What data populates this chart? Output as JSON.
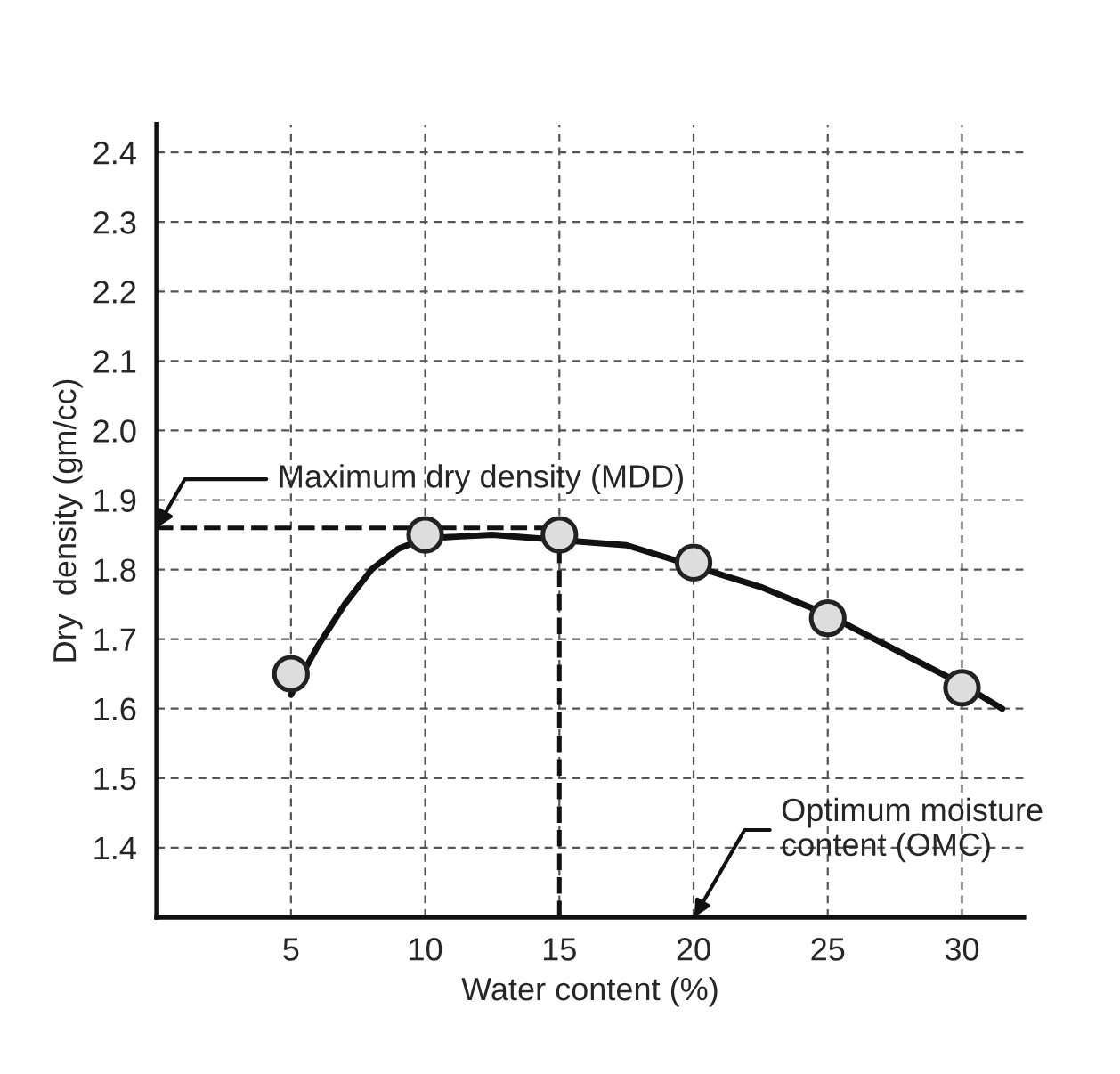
{
  "chart_data": {
    "type": "scatter",
    "xlabel": "Water content (%)",
    "ylabel": "Dry  density (gm/cc)",
    "x": [
      5,
      10,
      15,
      20,
      25,
      30
    ],
    "series": [
      {
        "color": "#222222",
        "marker": "circle",
        "values": [
          1.65,
          1.85,
          1.85,
          1.81,
          1.73,
          1.63
        ]
      },
      {
        "type": "line",
        "color": "#111111",
        "x": [
          5,
          6,
          7,
          8,
          9,
          10,
          12.5,
          17.5,
          22.5,
          25,
          27.5,
          30,
          31.5
        ],
        "values": [
          1.62,
          1.69,
          1.75,
          1.8,
          1.83,
          1.845,
          1.85,
          1.835,
          1.775,
          1.735,
          1.685,
          1.635,
          1.6
        ]
      }
    ],
    "xlim": [
      0,
      32.3
    ],
    "ylim": [
      1.3,
      2.44
    ],
    "xticks": [
      5,
      10,
      15,
      20,
      25,
      30
    ],
    "yticks": [
      1.4,
      1.5,
      1.6,
      1.7,
      1.8,
      1.9,
      {
        "value": 2.0,
        "label": "2.0"
      },
      2.1,
      2.2,
      2.3,
      2.4
    ],
    "grid": true,
    "ref_lines": [
      {
        "axis": "y",
        "value": 1.86,
        "color": "#111111",
        "line_style": "dashed"
      },
      {
        "axis": "x",
        "value": 15,
        "color": "#111111",
        "line_style": "dashed"
      }
    ],
    "annotations": [
      {
        "text": "Maximum dry density (MDD)",
        "x": 0,
        "y": 1.86
      },
      "Optimum moisture\ncontent (OMC)"
    ]
  }
}
